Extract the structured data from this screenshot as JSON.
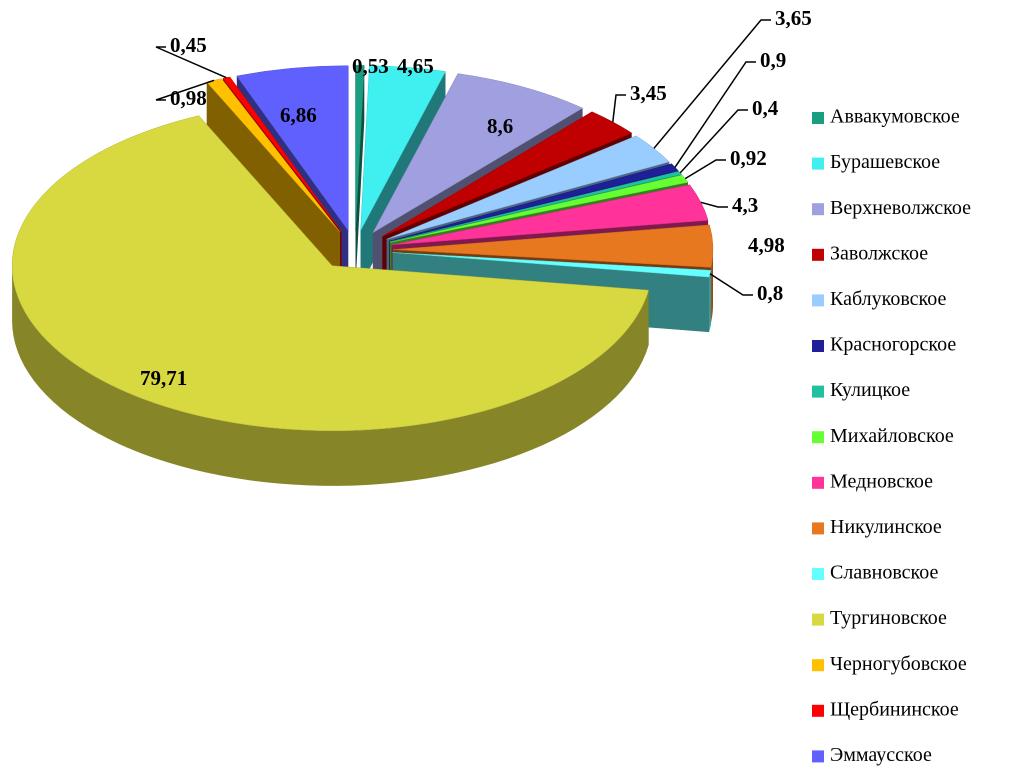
{
  "chart_data": {
    "type": "pie",
    "categories": [
      "Аввакумовское",
      "Бурашевское",
      "Верхневолжское",
      "Заволжское",
      "Каблуковское",
      "Красногорское",
      "Кулицкое",
      "Михайловское",
      "Медновское",
      "Никулинское",
      "Славновское",
      "Тургиновское",
      "Черногубовское",
      "Щербининское",
      "Эммаусское"
    ],
    "values": [
      0.53,
      4.65,
      8.6,
      3.45,
      3.65,
      0.9,
      0.4,
      0.92,
      4.3,
      4.98,
      0.8,
      79.71,
      0.98,
      0.45,
      6.86
    ],
    "value_labels": [
      "0,53",
      "4,65",
      "8,6",
      "3,45",
      "3,65",
      "0,9",
      "0,4",
      "0,92",
      "4,3",
      "4,98",
      "0,8",
      "79,71",
      "0,98",
      "0,45",
      "6,86"
    ],
    "colors": [
      "#1a9e80",
      "#40f0f0",
      "#a0a0e0",
      "#c00000",
      "#99ccff",
      "#1f1f99",
      "#20c0a0",
      "#66ff33",
      "#ff3399",
      "#e87820",
      "#66ffff",
      "#d8d840",
      "#ffc000",
      "#ff0000",
      "#6060ff"
    ],
    "legend": "right"
  }
}
